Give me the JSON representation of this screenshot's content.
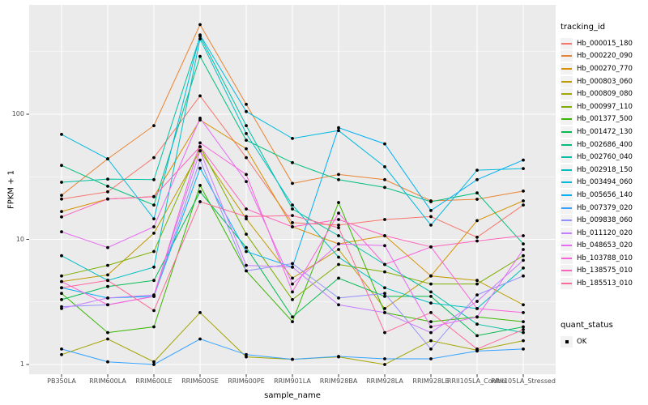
{
  "chart_data": {
    "type": "line",
    "title": "",
    "xlabel": "sample_name",
    "ylabel": "FPKM + 1",
    "y_scale": "log10",
    "y_ticks": [
      1,
      10,
      100
    ],
    "y_minor_ticks": [
      3.162,
      31.62,
      316.2
    ],
    "ylim": [
      1,
      560
    ],
    "grid": true,
    "panel_bg": "#EBEBEB",
    "grid_color": "#FFFFFF",
    "point_color": "#000000",
    "categories": [
      "PB350LA",
      "RRIM600LA",
      "RRIM600LE",
      "RRIM600SE",
      "RRIM600PE",
      "RRIM901LA",
      "RRIM928BA",
      "RRIM928LA",
      "RRIM928LE",
      "RRII105LA_Control",
      "RRII105LA_Stressed"
    ],
    "legend": {
      "color_title": "tracking_id",
      "shape_title": "quant_status",
      "shape_items": [
        {
          "label": "OK"
        }
      ],
      "position": "right"
    },
    "series": [
      {
        "name": "Hb_000015_180",
        "color": "#F8766D",
        "values": [
          21,
          24,
          45,
          140,
          45,
          13.6,
          13,
          14.4,
          15.2,
          10.4,
          18.8
        ]
      },
      {
        "name": "Hb_000220_090",
        "color": "#EA8331",
        "values": [
          22.5,
          44,
          81,
          520,
          120,
          28,
          33,
          30,
          20.3,
          20.9,
          24.3
        ]
      },
      {
        "name": "Hb_000270_770",
        "color": "#D89000",
        "values": [
          16.7,
          21,
          22,
          90,
          53,
          12.6,
          9.2,
          10.7,
          5.1,
          14.1,
          20.3
        ]
      },
      {
        "name": "Hb_000803_060",
        "color": "#C09B00",
        "values": [
          4.6,
          5.2,
          11.2,
          51,
          14.6,
          4.9,
          8.3,
          2.8,
          5.1,
          4.7,
          3.0
        ]
      },
      {
        "name": "Hb_000809_080",
        "color": "#A3A500",
        "values": [
          1.2,
          1.6,
          1.05,
          2.6,
          1.15,
          1.1,
          1.15,
          1.0,
          1.55,
          1.3,
          1.55
        ]
      },
      {
        "name": "Hb_000997_110",
        "color": "#7CAE00",
        "values": [
          5.1,
          6.2,
          8.0,
          55,
          11,
          3.3,
          6.3,
          5.5,
          4.4,
          4.4,
          7.4
        ]
      },
      {
        "name": "Hb_001377_500",
        "color": "#39B600",
        "values": [
          3.7,
          1.8,
          2.0,
          27,
          5.6,
          2.2,
          19.7,
          2.6,
          2.2,
          2.4,
          2.2
        ]
      },
      {
        "name": "Hb_001472_130",
        "color": "#00BB4E",
        "values": [
          3.3,
          4.2,
          4.7,
          24,
          8.6,
          2.4,
          4.9,
          3.5,
          3.5,
          1.7,
          2.0
        ]
      },
      {
        "name": "Hb_002686_400",
        "color": "#00BF7D",
        "values": [
          39,
          26.6,
          18.8,
          290,
          62,
          41,
          30,
          26,
          20,
          23.5,
          9.2
        ]
      },
      {
        "name": "Hb_002760_040",
        "color": "#00C1A3",
        "values": [
          28.6,
          30.3,
          30,
          420,
          81,
          17.5,
          10.7,
          6.3,
          3.8,
          2.1,
          1.8
        ]
      },
      {
        "name": "Hb_002918_150",
        "color": "#00BFC4",
        "values": [
          7.4,
          4.7,
          6.0,
          400,
          70,
          18.8,
          7.2,
          4.1,
          3.1,
          2.8,
          5.9
        ]
      },
      {
        "name": "Hb_003494_060",
        "color": "#00BAE0",
        "values": [
          69,
          44,
          14.6,
          430,
          105,
          64,
          74,
          38,
          13,
          35.7,
          36.8
        ]
      },
      {
        "name": "Hb_005656_140",
        "color": "#00B0F6",
        "values": [
          4.1,
          3.4,
          3.5,
          37,
          8.0,
          6.0,
          78,
          58,
          17,
          30,
          43
        ]
      },
      {
        "name": "Hb_007379_020",
        "color": "#35A2FF",
        "values": [
          1.33,
          1.05,
          1.0,
          1.6,
          1.2,
          1.1,
          1.16,
          1.11,
          1.11,
          1.28,
          1.33
        ]
      },
      {
        "name": "Hb_009838_060",
        "color": "#9590FF",
        "values": [
          2.9,
          3.0,
          3.5,
          43,
          5.6,
          6.4,
          3.4,
          3.7,
          1.33,
          3.6,
          5.1
        ]
      },
      {
        "name": "Hb_011120_020",
        "color": "#C77CFF",
        "values": [
          2.8,
          3.4,
          3.6,
          51,
          6.2,
          6.0,
          3.0,
          2.6,
          1.8,
          3.2,
          6.8
        ]
      },
      {
        "name": "Hb_048653_020",
        "color": "#E76BF3",
        "values": [
          11.5,
          8.6,
          12.6,
          93,
          29,
          4.4,
          9.2,
          8.9,
          2.0,
          2.4,
          8.3
        ]
      },
      {
        "name": "Hb_103788_010",
        "color": "#FA62DB",
        "values": [
          4.6,
          3.0,
          3.5,
          59,
          33,
          3.8,
          16.2,
          6.3,
          8.7,
          2.8,
          2.6
        ]
      },
      {
        "name": "Hb_138575_010",
        "color": "#FF62BC",
        "values": [
          15.1,
          21,
          21.9,
          55,
          17.5,
          12.6,
          14.4,
          10.7,
          8.7,
          9.7,
          10.7
        ]
      },
      {
        "name": "Hb_185513_010",
        "color": "#FF6A98",
        "values": [
          4.1,
          4.7,
          2.7,
          20,
          15.2,
          15.5,
          12.4,
          1.8,
          2.6,
          1.33,
          1.9
        ]
      }
    ]
  }
}
